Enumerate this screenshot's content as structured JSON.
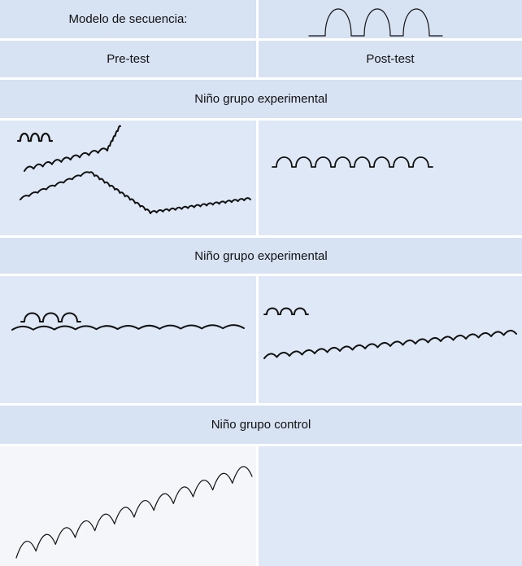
{
  "table": {
    "rows": [
      [
        "Modelo de secuencia:"
      ],
      [
        "Pre-test",
        "Post-test"
      ],
      [
        "Niño grupo experimental"
      ],
      [
        "Niño grupo experimental"
      ],
      [
        "Niño grupo control"
      ]
    ]
  }
}
